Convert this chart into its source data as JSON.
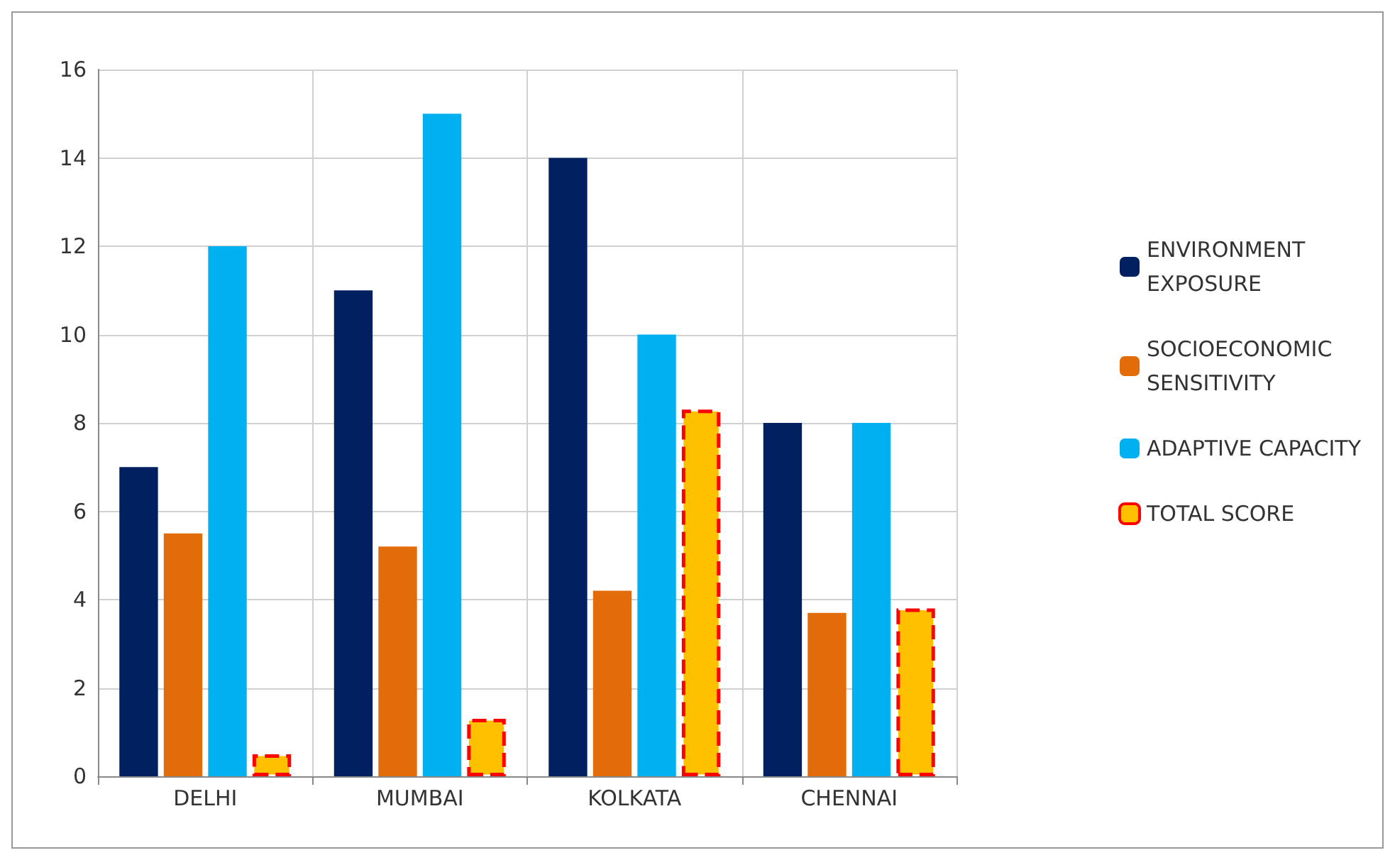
{
  "chart_data": {
    "type": "bar",
    "categories": [
      "DELHI",
      "MUMBAI",
      "KOLKATA",
      "CHENNAI"
    ],
    "series": [
      {
        "name": "ENVIRONMENT\nEXPOSURE",
        "color": "#002060",
        "values": [
          7,
          11,
          14,
          8
        ]
      },
      {
        "name": "SOCIOECONOMIC\nSENSITIVITY",
        "color": "#e36c0a",
        "values": [
          5.5,
          5.2,
          4.2,
          3.7
        ]
      },
      {
        "name": "ADAPTIVE CAPACITY",
        "color": "#00b0f0",
        "values": [
          12,
          15,
          10,
          8
        ]
      },
      {
        "name": "TOTAL SCORE",
        "color": "#ffc000",
        "line_style": "dashed",
        "values": [
          0.5,
          1.3,
          8.3,
          3.8
        ]
      }
    ],
    "ylim": [
      0,
      16
    ],
    "yticks": [
      0,
      2,
      4,
      6,
      8,
      10,
      12,
      14,
      16
    ],
    "grid": true,
    "legend": "right"
  }
}
